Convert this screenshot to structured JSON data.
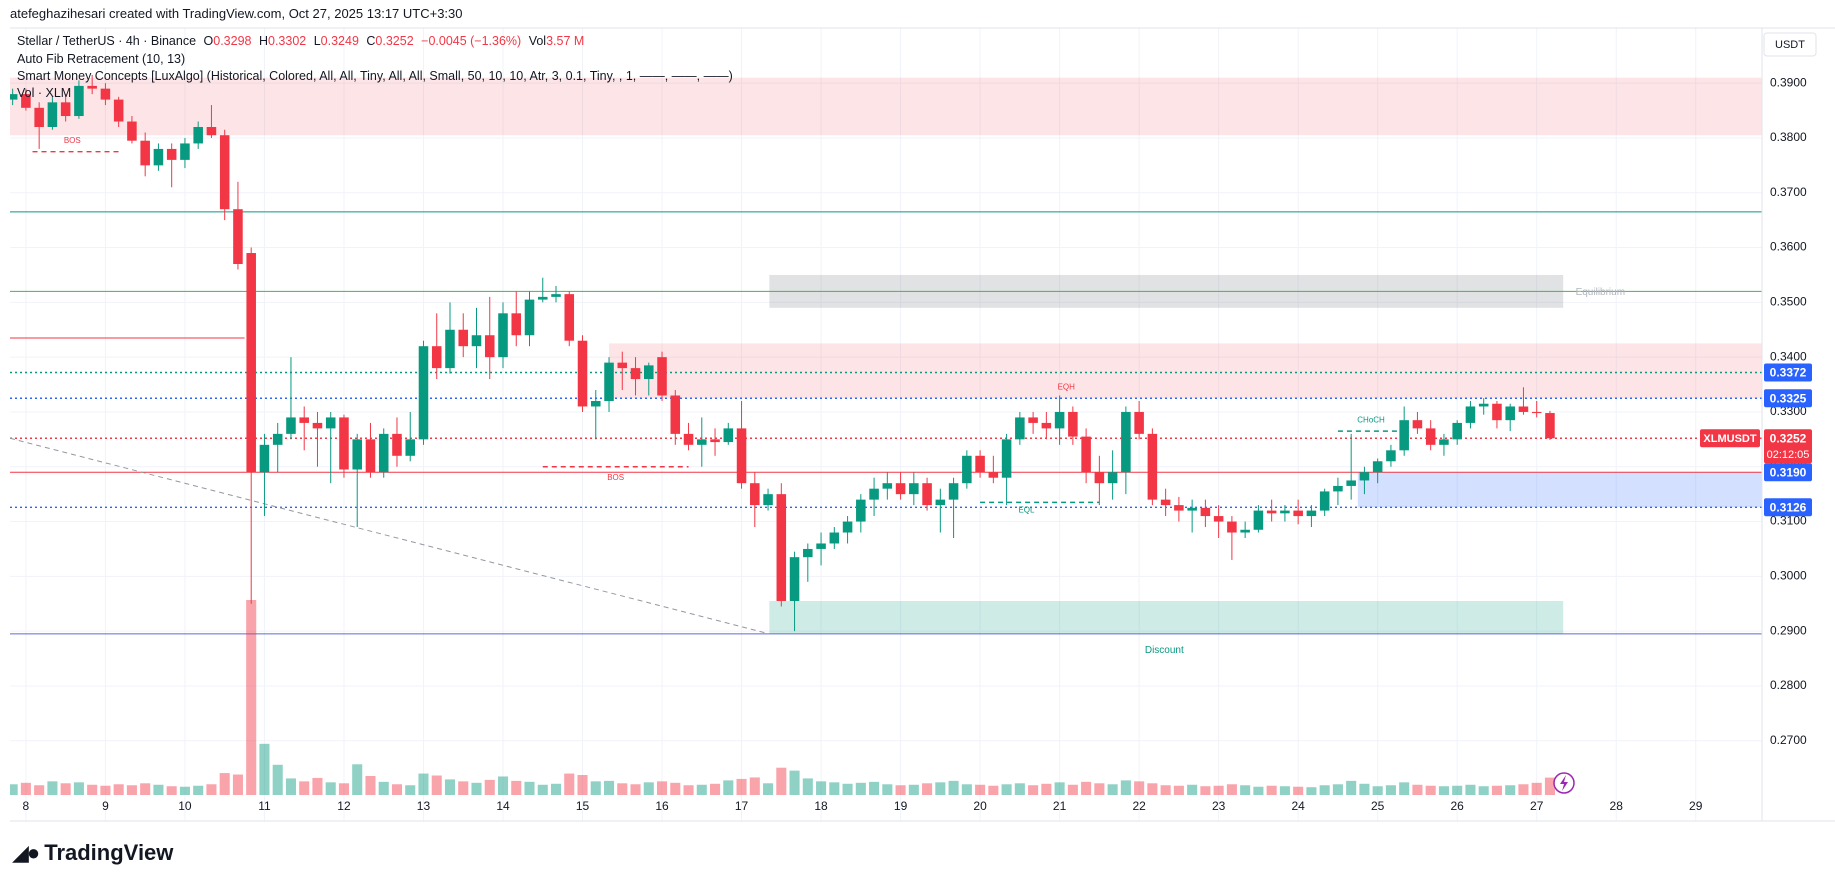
{
  "header": {
    "author_line": "atefeghazihesari created with TradingView.com, Oct 27, 2025 13:17 UTC+3:30",
    "symbol": "Stellar / TetherUS · 4h · Binance",
    "o_label": "O",
    "h_label": "H",
    "l_label": "L",
    "c_label": "C",
    "change": "−0.0045 (−1.36%)",
    "vol_label": "Vol",
    "vol_value": "3.57 M",
    "indicators": [
      "Auto Fib Retracement (10, 13)",
      "Smart Money Concepts [LuxAlgo] (Historical, Colored, All, All, Tiny, All, All, Small, 50, 10, 10, Atr, 3, 0.1, Tiny, , 1, ——, ——, ——)",
      "Vol · XLM"
    ]
  },
  "brand": "TradingView",
  "chart_data": {
    "type": "candlestick",
    "currency": "USDT",
    "symbol_tag": "XLMUSDT",
    "countdown": "02:12:05",
    "up_color": "#089981",
    "down_color": "#f23645",
    "grid": true,
    "candles": [
      [
        0.387,
        0.389,
        0.386,
        0.388
      ],
      [
        0.388,
        0.389,
        0.385,
        0.3855
      ],
      [
        0.3855,
        0.3865,
        0.378,
        0.382
      ],
      [
        0.382,
        0.3875,
        0.3815,
        0.3865
      ],
      [
        0.3865,
        0.388,
        0.383,
        0.384
      ],
      [
        0.384,
        0.3905,
        0.3835,
        0.3895
      ],
      [
        0.3895,
        0.3915,
        0.388,
        0.389
      ],
      [
        0.389,
        0.39,
        0.386,
        0.387
      ],
      [
        0.387,
        0.3875,
        0.382,
        0.383
      ],
      [
        0.383,
        0.384,
        0.379,
        0.3795
      ],
      [
        0.3795,
        0.381,
        0.373,
        0.375
      ],
      [
        0.375,
        0.379,
        0.374,
        0.378
      ],
      [
        0.378,
        0.379,
        0.371,
        0.376
      ],
      [
        0.376,
        0.38,
        0.3745,
        0.379
      ],
      [
        0.379,
        0.383,
        0.378,
        0.382
      ],
      [
        0.382,
        0.386,
        0.38,
        0.3805
      ],
      [
        0.3805,
        0.3815,
        0.365,
        0.367
      ],
      [
        0.367,
        0.372,
        0.356,
        0.357
      ],
      [
        0.359,
        0.36,
        0.295,
        0.319
      ],
      [
        0.319,
        0.326,
        0.311,
        0.324
      ],
      [
        0.324,
        0.328,
        0.319,
        0.326
      ],
      [
        0.326,
        0.34,
        0.325,
        0.329
      ],
      [
        0.329,
        0.331,
        0.323,
        0.328
      ],
      [
        0.328,
        0.33,
        0.32,
        0.327
      ],
      [
        0.327,
        0.33,
        0.317,
        0.329
      ],
      [
        0.329,
        0.3295,
        0.318,
        0.3195
      ],
      [
        0.3195,
        0.326,
        0.309,
        0.325
      ],
      [
        0.325,
        0.328,
        0.318,
        0.319
      ],
      [
        0.319,
        0.327,
        0.318,
        0.326
      ],
      [
        0.326,
        0.329,
        0.32,
        0.322
      ],
      [
        0.322,
        0.33,
        0.321,
        0.325
      ],
      [
        0.325,
        0.343,
        0.324,
        0.342
      ],
      [
        0.342,
        0.348,
        0.336,
        0.338
      ],
      [
        0.338,
        0.35,
        0.337,
        0.345
      ],
      [
        0.345,
        0.348,
        0.34,
        0.342
      ],
      [
        0.342,
        0.349,
        0.338,
        0.344
      ],
      [
        0.344,
        0.351,
        0.336,
        0.34
      ],
      [
        0.34,
        0.35,
        0.338,
        0.348
      ],
      [
        0.348,
        0.352,
        0.342,
        0.344
      ],
      [
        0.344,
        0.352,
        0.342,
        0.3505
      ],
      [
        0.3505,
        0.3545,
        0.35,
        0.351
      ],
      [
        0.351,
        0.353,
        0.35,
        0.3515
      ],
      [
        0.3515,
        0.352,
        0.342,
        0.343
      ],
      [
        0.343,
        0.344,
        0.33,
        0.331
      ],
      [
        0.331,
        0.334,
        0.325,
        0.332
      ],
      [
        0.332,
        0.34,
        0.33,
        0.339
      ],
      [
        0.339,
        0.341,
        0.334,
        0.338
      ],
      [
        0.338,
        0.34,
        0.333,
        0.336
      ],
      [
        0.336,
        0.339,
        0.333,
        0.3385
      ],
      [
        0.34,
        0.341,
        0.332,
        0.333
      ],
      [
        0.333,
        0.334,
        0.324,
        0.326
      ],
      [
        0.326,
        0.328,
        0.323,
        0.324
      ],
      [
        0.324,
        0.329,
        0.32,
        0.325
      ],
      [
        0.325,
        0.327,
        0.322,
        0.3245
      ],
      [
        0.3245,
        0.328,
        0.324,
        0.327
      ],
      [
        0.327,
        0.332,
        0.316,
        0.317
      ],
      [
        0.317,
        0.319,
        0.309,
        0.313
      ],
      [
        0.313,
        0.316,
        0.312,
        0.315
      ],
      [
        0.315,
        0.317,
        0.2945,
        0.2955
      ],
      [
        0.2955,
        0.3045,
        0.29,
        0.3035
      ],
      [
        0.3035,
        0.306,
        0.299,
        0.305
      ],
      [
        0.305,
        0.308,
        0.302,
        0.306
      ],
      [
        0.306,
        0.309,
        0.305,
        0.308
      ],
      [
        0.308,
        0.311,
        0.306,
        0.31
      ],
      [
        0.31,
        0.315,
        0.308,
        0.314
      ],
      [
        0.314,
        0.318,
        0.311,
        0.316
      ],
      [
        0.316,
        0.319,
        0.314,
        0.317
      ],
      [
        0.317,
        0.319,
        0.314,
        0.315
      ],
      [
        0.315,
        0.319,
        0.313,
        0.317
      ],
      [
        0.317,
        0.318,
        0.312,
        0.313
      ],
      [
        0.313,
        0.316,
        0.308,
        0.314
      ],
      [
        0.314,
        0.318,
        0.307,
        0.317
      ],
      [
        0.317,
        0.323,
        0.316,
        0.322
      ],
      [
        0.322,
        0.323,
        0.318,
        0.319
      ],
      [
        0.319,
        0.322,
        0.317,
        0.318
      ],
      [
        0.318,
        0.326,
        0.313,
        0.325
      ],
      [
        0.325,
        0.33,
        0.324,
        0.329
      ],
      [
        0.329,
        0.33,
        0.326,
        0.328
      ],
      [
        0.328,
        0.33,
        0.325,
        0.327
      ],
      [
        0.327,
        0.333,
        0.324,
        0.33
      ],
      [
        0.33,
        0.331,
        0.324,
        0.3255
      ],
      [
        0.3255,
        0.327,
        0.317,
        0.319
      ],
      [
        0.319,
        0.322,
        0.313,
        0.317
      ],
      [
        0.317,
        0.323,
        0.314,
        0.319
      ],
      [
        0.319,
        0.331,
        0.315,
        0.33
      ],
      [
        0.33,
        0.332,
        0.325,
        0.326
      ],
      [
        0.326,
        0.327,
        0.313,
        0.314
      ],
      [
        0.314,
        0.316,
        0.311,
        0.313
      ],
      [
        0.313,
        0.3145,
        0.31,
        0.312
      ],
      [
        0.312,
        0.314,
        0.308,
        0.3125
      ],
      [
        0.3125,
        0.314,
        0.309,
        0.311
      ],
      [
        0.311,
        0.313,
        0.307,
        0.31
      ],
      [
        0.31,
        0.311,
        0.303,
        0.308
      ],
      [
        0.308,
        0.31,
        0.307,
        0.3085
      ],
      [
        0.3085,
        0.313,
        0.308,
        0.312
      ],
      [
        0.312,
        0.314,
        0.31,
        0.3115
      ],
      [
        0.3115,
        0.313,
        0.31,
        0.312
      ],
      [
        0.312,
        0.314,
        0.3095,
        0.311
      ],
      [
        0.311,
        0.313,
        0.309,
        0.312
      ],
      [
        0.312,
        0.316,
        0.311,
        0.3155
      ],
      [
        0.3155,
        0.318,
        0.313,
        0.3165
      ],
      [
        0.3165,
        0.326,
        0.314,
        0.3175
      ],
      [
        0.3175,
        0.32,
        0.315,
        0.319
      ],
      [
        0.319,
        0.3215,
        0.317,
        0.321
      ],
      [
        0.321,
        0.324,
        0.32,
        0.323
      ],
      [
        0.323,
        0.331,
        0.322,
        0.3285
      ],
      [
        0.3285,
        0.33,
        0.326,
        0.327
      ],
      [
        0.327,
        0.3285,
        0.323,
        0.324
      ],
      [
        0.324,
        0.326,
        0.322,
        0.325
      ],
      [
        0.325,
        0.3285,
        0.324,
        0.328
      ],
      [
        0.328,
        0.332,
        0.327,
        0.331
      ],
      [
        0.331,
        0.3325,
        0.3295,
        0.3315
      ],
      [
        0.3315,
        0.332,
        0.327,
        0.3285
      ],
      [
        0.3285,
        0.3315,
        0.3265,
        0.331
      ],
      [
        0.331,
        0.3345,
        0.3295,
        0.33
      ],
      [
        0.33,
        0.332,
        0.329,
        0.3298
      ],
      [
        0.3298,
        0.3302,
        0.3249,
        0.3252
      ]
    ],
    "volumes": [
      2.2,
      2.5,
      2.0,
      2.8,
      2.4,
      2.6,
      2.1,
      1.9,
      2.2,
      2.0,
      2.4,
      2.1,
      1.8,
      1.7,
      1.9,
      2.2,
      4.5,
      4.2,
      40,
      10.5,
      6.2,
      3.4,
      2.8,
      3.5,
      2.6,
      2.4,
      6.3,
      3.9,
      2.7,
      2.2,
      2.0,
      4.4,
      4.0,
      3.2,
      2.8,
      2.5,
      3.1,
      3.8,
      2.9,
      2.7,
      2.1,
      2.3,
      4.4,
      4.1,
      2.8,
      2.9,
      2.4,
      2.2,
      2.6,
      2.8,
      2.5,
      2.0,
      2.1,
      2.3,
      3.0,
      3.3,
      3.6,
      2.4,
      5.6,
      5.0,
      3.4,
      2.8,
      2.6,
      2.3,
      2.5,
      2.7,
      2.2,
      2.0,
      2.1,
      2.4,
      2.6,
      2.9,
      2.2,
      2.1,
      1.9,
      2.2,
      2.4,
      2.0,
      2.3,
      2.6,
      2.1,
      2.7,
      2.4,
      2.2,
      3.0,
      2.8,
      2.4,
      2.0,
      1.9,
      2.1,
      1.8,
      1.9,
      2.2,
      2.0,
      1.7,
      1.9,
      1.8,
      1.7,
      1.6,
      2.0,
      2.2,
      2.9,
      2.3,
      1.8,
      2.0,
      2.6,
      2.1,
      1.9,
      1.8,
      1.9,
      2.1,
      1.8,
      1.9,
      2.0,
      2.2,
      2.5,
      3.57
    ],
    "ylim": [
      0.2601,
      0.3997
    ],
    "yticks": [
      {
        "value": 0.27,
        "label": "0.2700"
      },
      {
        "value": 0.28,
        "label": "0.2800"
      },
      {
        "value": 0.29,
        "label": "0.2900"
      },
      {
        "value": 0.3,
        "label": "0.3000"
      },
      {
        "value": 0.31,
        "label": "0.3100"
      },
      {
        "value": 0.32,
        "label": "0.3200"
      },
      {
        "value": 0.33,
        "label": "0.3300"
      },
      {
        "value": 0.34,
        "label": "0.3400"
      },
      {
        "value": 0.35,
        "label": "0.3500"
      },
      {
        "value": 0.36,
        "label": "0.3600"
      },
      {
        "value": 0.37,
        "label": "0.3700"
      },
      {
        "value": 0.38,
        "label": "0.3800"
      },
      {
        "value": 0.39,
        "label": "0.3900"
      }
    ],
    "xlim": [
      -0.2,
      132
    ],
    "xticks": [
      {
        "value": 1,
        "label": "8"
      },
      {
        "value": 7,
        "label": "9"
      },
      {
        "value": 13,
        "label": "10"
      },
      {
        "value": 19,
        "label": "11"
      },
      {
        "value": 25,
        "label": "12"
      },
      {
        "value": 31,
        "label": "13"
      },
      {
        "value": 37,
        "label": "14"
      },
      {
        "value": 43,
        "label": "15"
      },
      {
        "value": 49,
        "label": "16"
      },
      {
        "value": 55,
        "label": "17"
      },
      {
        "value": 61,
        "label": "18"
      },
      {
        "value": 67,
        "label": "19"
      },
      {
        "value": 73,
        "label": "20"
      },
      {
        "value": 79,
        "label": "21"
      },
      {
        "value": 85,
        "label": "22"
      },
      {
        "value": 91,
        "label": "23"
      },
      {
        "value": 97,
        "label": "24"
      },
      {
        "value": 103,
        "label": "25"
      },
      {
        "value": 109,
        "label": "26"
      },
      {
        "value": 115,
        "label": "27"
      },
      {
        "value": 121,
        "label": "28"
      },
      {
        "value": 127,
        "label": "29"
      }
    ],
    "zones": [
      {
        "x": [
          -0.2,
          132
        ],
        "y": [
          0.3805,
          0.391
        ],
        "color": "rgba(242,54,69,0.13)"
      },
      {
        "x": [
          57.1,
          117
        ],
        "y": [
          0.349,
          0.355
        ],
        "color": "rgba(120,123,134,0.22)"
      },
      {
        "x": [
          57.1,
          117
        ],
        "y": [
          0.2895,
          0.2955
        ],
        "color": "rgba(8,153,129,0.2)"
      },
      {
        "x": [
          45,
          132
        ],
        "y": [
          0.3325,
          0.3425
        ],
        "color": "rgba(242,54,69,0.13)"
      },
      {
        "x": [
          101.5,
          132
        ],
        "y": [
          0.3126,
          0.319
        ],
        "color": "rgba(41,98,255,0.2)"
      }
    ],
    "levels": [
      {
        "value": 0.3665,
        "x": [
          -0.2,
          132
        ],
        "color": "#089981",
        "style": "solid"
      },
      {
        "value": 0.352,
        "x": [
          -0.2,
          132
        ],
        "color": "#4caf50",
        "style": "solid"
      },
      {
        "value": 0.3435,
        "x": [
          -0.2,
          17.5
        ],
        "color": "#f23645",
        "style": "solid"
      },
      {
        "value": 0.2895,
        "x": [
          -0.2,
          132
        ],
        "color": "#5b6bd6",
        "style": "solid"
      },
      {
        "value": 0.319,
        "x": [
          -0.2,
          132
        ],
        "color": "#f23645",
        "style": "solid"
      },
      {
        "value": 0.3372,
        "x": [
          -0.2,
          132
        ],
        "color": "#089981",
        "style": "dotted"
      },
      {
        "value": 0.3325,
        "x": [
          -0.2,
          132
        ],
        "color": "#2962ff",
        "style": "dotted"
      },
      {
        "value": 0.3252,
        "x": [
          -0.2,
          132
        ],
        "color": "#f23645",
        "style": "dotted"
      },
      {
        "value": 0.3126,
        "x": [
          -0.2,
          132
        ],
        "color": "#2962ff",
        "style": "dotted"
      },
      {
        "value": 0.3775,
        "x": [
          1.5,
          8
        ],
        "color": "#f23645",
        "style": "dashed"
      },
      {
        "value": 0.32,
        "x": [
          40,
          51
        ],
        "color": "#f23645",
        "style": "dashed"
      },
      {
        "value": 0.3135,
        "x": [
          73,
          82
        ],
        "color": "#089981",
        "style": "dashed"
      },
      {
        "value": 0.3265,
        "x": [
          100,
          105
        ],
        "color": "#089981",
        "style": "dashed"
      }
    ],
    "trendlines": [
      {
        "points": [
          [
            -0.2,
            0.3252
          ],
          [
            57.1,
            0.2895
          ]
        ],
        "color": "#9598a1",
        "style": "dashed"
      }
    ],
    "annotations": [
      {
        "text": "BOS",
        "x": 4.5,
        "y": 0.3795,
        "color": "#f23645",
        "size": 8
      },
      {
        "text": "BOS",
        "x": 45.5,
        "y": 0.318,
        "color": "#f23645",
        "size": 8
      },
      {
        "text": "EQH",
        "x": 79.5,
        "y": 0.3345,
        "color": "#f23645",
        "size": 8
      },
      {
        "text": "EQL",
        "x": 76.5,
        "y": 0.312,
        "color": "#089981",
        "size": 8
      },
      {
        "text": "CHoCH",
        "x": 102.5,
        "y": 0.3285,
        "color": "#089981",
        "size": 8
      },
      {
        "text": "Equilibrium",
        "x": 119.8,
        "y": 0.3518,
        "color": "#b2b5be",
        "size": 10
      },
      {
        "text": "Discount",
        "x": 86.9,
        "y": 0.2865,
        "color": "#089981",
        "size": 10
      }
    ],
    "tags": [
      {
        "value": 0.3372,
        "label": "0.3372",
        "color": "#2962ff"
      },
      {
        "value": 0.3325,
        "label": "0.3325",
        "color": "#2962ff"
      },
      {
        "value": 0.319,
        "label": "0.3190",
        "color": "#2962ff"
      },
      {
        "value": 0.3126,
        "label": "0.3126",
        "color": "#2962ff"
      }
    ],
    "current": {
      "value": 0.3252,
      "label": "0.3252",
      "color": "#f23645"
    }
  }
}
